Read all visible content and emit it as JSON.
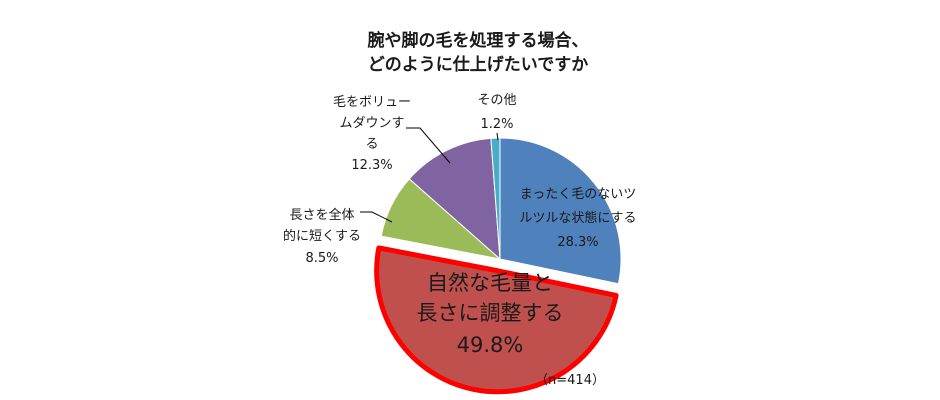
{
  "chart_data": {
    "type": "pie",
    "title_lines": [
      "腕や脚の毛を処理する場合、",
      "どのように仕上げたいですか"
    ],
    "sample_note": "（n=414）",
    "slices": [
      {
        "label_lines": [
          "まったく毛のないツ",
          "ルツルな状態にする"
        ],
        "value": 28.3,
        "display": "28.3%",
        "color": "#4f81bd"
      },
      {
        "label_lines": [
          "自然な毛量と",
          "長さに調整する"
        ],
        "value": 49.8,
        "display": "49.8%",
        "color": "#c0504d",
        "highlight": true,
        "highlight_color": "#ff0000"
      },
      {
        "label_lines": [
          "長さを全体",
          "的に短くする"
        ],
        "value": 8.5,
        "display": "8.5%",
        "color": "#9bbb59"
      },
      {
        "label_lines": [
          "毛をボリュー",
          "ムダウンす",
          "る"
        ],
        "value": 12.3,
        "display": "12.3%",
        "color": "#8064a2"
      },
      {
        "label_lines": [
          "その他"
        ],
        "value": 1.2,
        "display": "1.2%",
        "color": "#4bacc6"
      }
    ]
  }
}
